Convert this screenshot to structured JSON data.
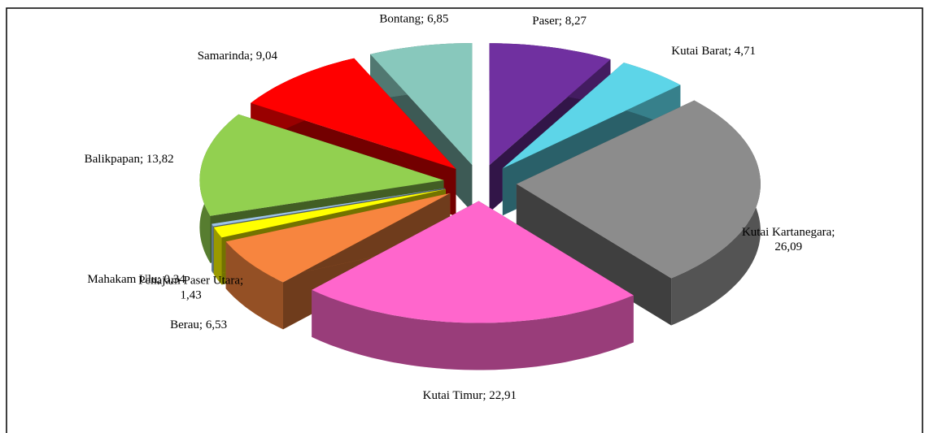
{
  "chart_data": {
    "type": "pie",
    "three_d": true,
    "exploded": true,
    "values": [
      8.27,
      4.71,
      26.09,
      22.91,
      6.53,
      1.43,
      0.34,
      13.82,
      9.04,
      6.85
    ],
    "value_labels": [
      "Paser;  8,27",
      "Kutai Barat;  4,71",
      "Kutai Kartanegara;\n26,09",
      "Kutai Timur;  22,91",
      "Berau;  6,53",
      "Penajam Paser Utara;\n1,43",
      "Mahakam Ulu;  0,34",
      "Balikpapan;  13,82",
      "Samarinda;  9,04",
      "Bontang;  6,85"
    ],
    "colors": [
      "#7030a0",
      "#5dd5e8",
      "#8c8c8c",
      "#ff66cc",
      "#f7853f",
      "#ffff00",
      "#9dc3e6",
      "#92d050",
      "#ff0000",
      "#88c8bc"
    ]
  }
}
